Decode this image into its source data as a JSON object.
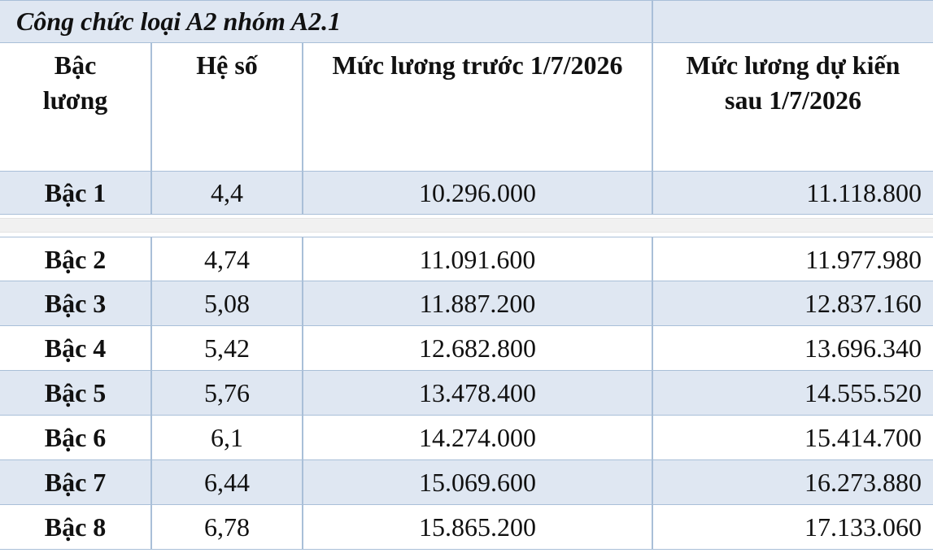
{
  "table": {
    "title": "Công chức loại A2 nhóm A2.1",
    "headers": [
      "Bậc lương",
      "Hệ số",
      "Mức lương trước 1/7/2026",
      "Mức lương dự kiến sau 1/7/2026"
    ],
    "rows": [
      [
        "Bậc 1",
        "4,4",
        "10.296.000",
        "11.118.800"
      ],
      [
        "Bậc 2",
        "4,74",
        "11.091.600",
        "11.977.980"
      ],
      [
        "Bậc 3",
        "5,08",
        "11.887.200",
        "12.837.160"
      ],
      [
        "Bậc 4",
        "5,42",
        "12.682.800",
        "13.696.340"
      ],
      [
        "Bậc 5",
        "5,76",
        "13.478.400",
        "14.555.520"
      ],
      [
        "Bậc 6",
        "6,1",
        "14.274.000",
        "15.414.700"
      ],
      [
        "Bậc 7",
        "6,44",
        "15.069.600",
        "16.273.880"
      ],
      [
        "Bậc 8",
        "6,78",
        "15.865.200",
        "17.133.060"
      ]
    ]
  }
}
